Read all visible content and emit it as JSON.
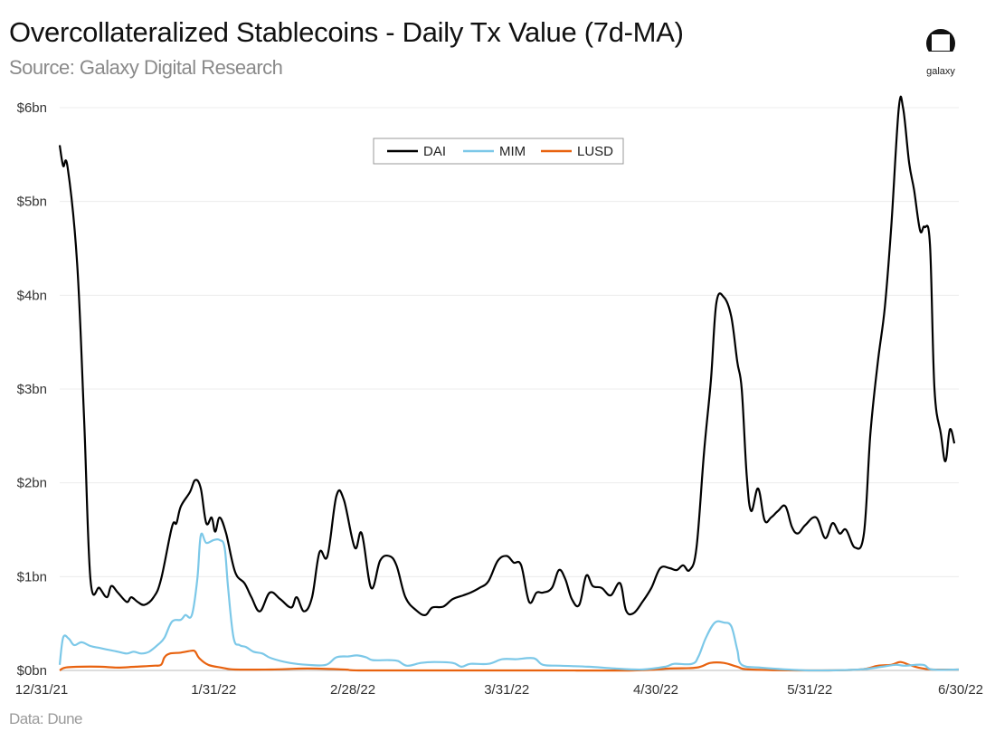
{
  "header": {
    "title": "Overcollateralized Stablecoins - Daily Tx Value (7d-MA)",
    "subtitle": "Source: Galaxy Digital Research",
    "logo_text": "galaxy"
  },
  "footer": {
    "source": "Data: Dune"
  },
  "chart_data": {
    "type": "line",
    "title": "Overcollateralized Stablecoins - Daily Tx Value (7d-MA)",
    "xlabel": "",
    "ylabel": "",
    "x_unit": "days since 12/31/21",
    "xlim": [
      0,
      181
    ],
    "ylim": [
      0,
      6
    ],
    "grid": true,
    "legend_position": "top-center",
    "y_ticks": [
      {
        "value": 0,
        "label": "$0bn"
      },
      {
        "value": 1,
        "label": "$1bn"
      },
      {
        "value": 2,
        "label": "$2bn"
      },
      {
        "value": 3,
        "label": "$3bn"
      },
      {
        "value": 4,
        "label": "$4bn"
      },
      {
        "value": 5,
        "label": "$5bn"
      },
      {
        "value": 6,
        "label": "$6bn"
      }
    ],
    "x_ticks": [
      {
        "value": 0,
        "label": "12/31/21"
      },
      {
        "value": 31,
        "label": "1/31/22"
      },
      {
        "value": 59,
        "label": "2/28/22"
      },
      {
        "value": 90,
        "label": "3/31/22"
      },
      {
        "value": 120,
        "label": "4/30/22"
      },
      {
        "value": 151,
        "label": "5/31/22"
      },
      {
        "value": 181,
        "label": "6/30/22"
      }
    ],
    "series": [
      {
        "name": "DAI",
        "color": "#000000",
        "points": [
          [
            0,
            5.6
          ],
          [
            0.7,
            5.38
          ],
          [
            1.6,
            5.36
          ],
          [
            3.5,
            4.35
          ],
          [
            4.9,
            2.7
          ],
          [
            6.2,
            0.97
          ],
          [
            8,
            0.88
          ],
          [
            9.5,
            0.78
          ],
          [
            10.4,
            0.9
          ],
          [
            11.7,
            0.83
          ],
          [
            13.5,
            0.73
          ],
          [
            14.4,
            0.78
          ],
          [
            15.7,
            0.73
          ],
          [
            17.1,
            0.7
          ],
          [
            18.9,
            0.78
          ],
          [
            20.4,
            0.97
          ],
          [
            22.6,
            1.53
          ],
          [
            23.5,
            1.57
          ],
          [
            24.4,
            1.75
          ],
          [
            26.2,
            1.9
          ],
          [
            27.3,
            2.03
          ],
          [
            28.4,
            1.94
          ],
          [
            29.5,
            1.57
          ],
          [
            30.6,
            1.63
          ],
          [
            31.3,
            1.48
          ],
          [
            32.2,
            1.63
          ],
          [
            33.5,
            1.46
          ],
          [
            35.3,
            1.05
          ],
          [
            37.2,
            0.93
          ],
          [
            38.6,
            0.78
          ],
          [
            40.3,
            0.63
          ],
          [
            42.3,
            0.83
          ],
          [
            44.4,
            0.76
          ],
          [
            46.6,
            0.67
          ],
          [
            47.7,
            0.78
          ],
          [
            49.2,
            0.63
          ],
          [
            50.8,
            0.78
          ],
          [
            52.3,
            1.26
          ],
          [
            53.9,
            1.22
          ],
          [
            55.7,
            1.86
          ],
          [
            57.2,
            1.82
          ],
          [
            59.4,
            1.31
          ],
          [
            60.8,
            1.46
          ],
          [
            62.7,
            0.88
          ],
          [
            64.5,
            1.17
          ],
          [
            66.3,
            1.22
          ],
          [
            67.8,
            1.12
          ],
          [
            69.6,
            0.78
          ],
          [
            71.8,
            0.64
          ],
          [
            73.6,
            0.59
          ],
          [
            75,
            0.67
          ],
          [
            77.2,
            0.68
          ],
          [
            79.1,
            0.76
          ],
          [
            81.2,
            0.8
          ],
          [
            82.7,
            0.83
          ],
          [
            84.5,
            0.88
          ],
          [
            86.3,
            0.95
          ],
          [
            88.2,
            1.17
          ],
          [
            90,
            1.22
          ],
          [
            91.4,
            1.15
          ],
          [
            92.9,
            1.12
          ],
          [
            94.5,
            0.73
          ],
          [
            96,
            0.83
          ],
          [
            97.3,
            0.83
          ],
          [
            99.1,
            0.88
          ],
          [
            100.5,
            1.07
          ],
          [
            101.8,
            0.97
          ],
          [
            103.1,
            0.76
          ],
          [
            104.6,
            0.7
          ],
          [
            106,
            1.01
          ],
          [
            107.3,
            0.9
          ],
          [
            109.1,
            0.88
          ],
          [
            110.9,
            0.8
          ],
          [
            112.8,
            0.93
          ],
          [
            114,
            0.64
          ],
          [
            115.5,
            0.61
          ],
          [
            117.3,
            0.73
          ],
          [
            119.1,
            0.88
          ],
          [
            120.9,
            1.09
          ],
          [
            122.8,
            1.09
          ],
          [
            124.2,
            1.07
          ],
          [
            125.5,
            1.12
          ],
          [
            126.8,
            1.07
          ],
          [
            128.2,
            1.31
          ],
          [
            129.7,
            2.32
          ],
          [
            131.1,
            3.1
          ],
          [
            132.2,
            3.92
          ],
          [
            133.7,
            3.98
          ],
          [
            135.2,
            3.77
          ],
          [
            136.4,
            3.29
          ],
          [
            137.3,
            3.0
          ],
          [
            138.3,
            2.08
          ],
          [
            139.2,
            1.7
          ],
          [
            140.6,
            1.94
          ],
          [
            141.9,
            1.6
          ],
          [
            143.2,
            1.63
          ],
          [
            144.6,
            1.7
          ],
          [
            146.1,
            1.75
          ],
          [
            147.4,
            1.53
          ],
          [
            148.6,
            1.46
          ],
          [
            150.1,
            1.55
          ],
          [
            152.3,
            1.63
          ],
          [
            154.1,
            1.41
          ],
          [
            155.6,
            1.57
          ],
          [
            157,
            1.46
          ],
          [
            158.3,
            1.5
          ],
          [
            160.1,
            1.31
          ],
          [
            161.9,
            1.46
          ],
          [
            163.2,
            2.52
          ],
          [
            164.7,
            3.29
          ],
          [
            166.1,
            3.87
          ],
          [
            167.4,
            4.73
          ],
          [
            168.9,
            5.99
          ],
          [
            169.8,
            5.99
          ],
          [
            171,
            5.41
          ],
          [
            172,
            5.12
          ],
          [
            173.2,
            4.69
          ],
          [
            174.1,
            4.73
          ],
          [
            175.2,
            4.54
          ],
          [
            176.1,
            3.0
          ],
          [
            177.4,
            2.52
          ],
          [
            178.3,
            2.23
          ],
          [
            179.2,
            2.57
          ],
          [
            180.1,
            2.42
          ]
        ]
      },
      {
        "name": "MIM",
        "color": "#7cc8e8",
        "points": [
          [
            0,
            0.06
          ],
          [
            0.7,
            0.35
          ],
          [
            1.8,
            0.34
          ],
          [
            2.9,
            0.27
          ],
          [
            4.4,
            0.3
          ],
          [
            6.2,
            0.26
          ],
          [
            8,
            0.24
          ],
          [
            9.8,
            0.22
          ],
          [
            11.7,
            0.2
          ],
          [
            13.5,
            0.18
          ],
          [
            14.9,
            0.2
          ],
          [
            16.4,
            0.18
          ],
          [
            18,
            0.2
          ],
          [
            19.9,
            0.28
          ],
          [
            21.1,
            0.35
          ],
          [
            22.6,
            0.52
          ],
          [
            24.4,
            0.54
          ],
          [
            25.3,
            0.59
          ],
          [
            26.6,
            0.59
          ],
          [
            27.7,
            0.97
          ],
          [
            28.4,
            1.44
          ],
          [
            29.5,
            1.36
          ],
          [
            31,
            1.39
          ],
          [
            32.2,
            1.39
          ],
          [
            33.2,
            1.31
          ],
          [
            33.9,
            0.88
          ],
          [
            35,
            0.35
          ],
          [
            36.2,
            0.27
          ],
          [
            37.5,
            0.25
          ],
          [
            39,
            0.2
          ],
          [
            40.8,
            0.18
          ],
          [
            42.6,
            0.13
          ],
          [
            46.3,
            0.08
          ],
          [
            49.9,
            0.06
          ],
          [
            53.6,
            0.06
          ],
          [
            55.7,
            0.14
          ],
          [
            58.1,
            0.15
          ],
          [
            59.9,
            0.16
          ],
          [
            61.7,
            0.14
          ],
          [
            63,
            0.11
          ],
          [
            66.3,
            0.11
          ],
          [
            68.1,
            0.1
          ],
          [
            69.9,
            0.05
          ],
          [
            72.7,
            0.08
          ],
          [
            75.4,
            0.09
          ],
          [
            79.1,
            0.08
          ],
          [
            80.9,
            0.04
          ],
          [
            82.7,
            0.07
          ],
          [
            86.3,
            0.07
          ],
          [
            89.1,
            0.12
          ],
          [
            91.8,
            0.12
          ],
          [
            95.4,
            0.13
          ],
          [
            97.3,
            0.06
          ],
          [
            100.9,
            0.05
          ],
          [
            106.4,
            0.04
          ],
          [
            111.8,
            0.02
          ],
          [
            117.3,
            0.01
          ],
          [
            121.9,
            0.04
          ],
          [
            123.7,
            0.07
          ],
          [
            127.3,
            0.07
          ],
          [
            128.6,
            0.15
          ],
          [
            130.1,
            0.35
          ],
          [
            131.9,
            0.51
          ],
          [
            133.7,
            0.51
          ],
          [
            135.2,
            0.47
          ],
          [
            136.4,
            0.22
          ],
          [
            137.3,
            0.06
          ],
          [
            141,
            0.03
          ],
          [
            146.4,
            0.01
          ],
          [
            151.9,
            0
          ],
          [
            161,
            0.01
          ],
          [
            165.6,
            0.04
          ],
          [
            168.3,
            0.06
          ],
          [
            170.1,
            0.05
          ],
          [
            173.8,
            0.06
          ],
          [
            175.6,
            0.01
          ],
          [
            181,
            0.01
          ]
        ]
      },
      {
        "name": "LUSD",
        "color": "#e8620f",
        "points": [
          [
            0,
            0
          ],
          [
            1.1,
            0.03
          ],
          [
            4.4,
            0.04
          ],
          [
            8,
            0.04
          ],
          [
            11.7,
            0.03
          ],
          [
            15.3,
            0.04
          ],
          [
            18.9,
            0.05
          ],
          [
            20.4,
            0.06
          ],
          [
            21.1,
            0.14
          ],
          [
            22.2,
            0.18
          ],
          [
            24.4,
            0.19
          ],
          [
            26.6,
            0.21
          ],
          [
            27.3,
            0.2
          ],
          [
            28.1,
            0.13
          ],
          [
            29.9,
            0.06
          ],
          [
            32.6,
            0.03
          ],
          [
            35.3,
            0.01
          ],
          [
            42.6,
            0.01
          ],
          [
            49.9,
            0.02
          ],
          [
            57.2,
            0.01
          ],
          [
            60.8,
            0
          ],
          [
            79.1,
            0
          ],
          [
            97.3,
            0
          ],
          [
            115.5,
            0
          ],
          [
            122.8,
            0.02
          ],
          [
            128.2,
            0.03
          ],
          [
            131,
            0.08
          ],
          [
            133.7,
            0.08
          ],
          [
            136.4,
            0.04
          ],
          [
            139.2,
            0.01
          ],
          [
            151.9,
            0
          ],
          [
            161,
            0.01
          ],
          [
            164.7,
            0.05
          ],
          [
            167.4,
            0.06
          ],
          [
            169.2,
            0.09
          ],
          [
            171,
            0.06
          ],
          [
            172.9,
            0.03
          ],
          [
            175.6,
            0.01
          ],
          [
            181,
            0.01
          ]
        ]
      }
    ]
  }
}
